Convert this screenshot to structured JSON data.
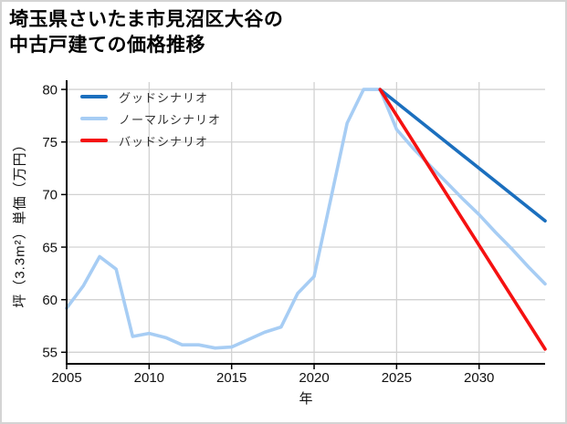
{
  "header": {
    "title_line1": "埼玉県さいたま市見沼区大谷の",
    "title_line2": "中古戸建ての価格推移"
  },
  "chart_data": {
    "type": "line",
    "title": "埼玉県さいたま市見沼区大谷の中古戸建ての価格推移",
    "xlabel": "年",
    "ylabel": "坪（3.3m²）単価（万円）",
    "xlim": [
      2005,
      2034
    ],
    "ylim": [
      53.9,
      80.7
    ],
    "x_ticks": [
      2005,
      2010,
      2015,
      2020,
      2025,
      2030
    ],
    "y_ticks": [
      55,
      60,
      65,
      70,
      75,
      80
    ],
    "grid": true,
    "grid_color": "#d2d2d2",
    "axis_color": "#000000",
    "legend_position": "upper-left",
    "series": [
      {
        "name": "グッドシナリオ",
        "color": "#1b6fbe",
        "x": [
          2024,
          2034
        ],
        "values": [
          80,
          67.5
        ]
      },
      {
        "name": "ノーマルシナリオ",
        "color": "#a7cdf4",
        "x": [
          2005,
          2006,
          2007,
          2008,
          2009,
          2010,
          2011,
          2012,
          2013,
          2014,
          2015,
          2016,
          2017,
          2018,
          2019,
          2020,
          2021,
          2022,
          2023,
          2024,
          2025,
          2026,
          2027,
          2028,
          2029,
          2030,
          2031,
          2032,
          2033,
          2034
        ],
        "values": [
          59.2,
          61.3,
          64.1,
          62.9,
          56.5,
          56.8,
          56.4,
          55.7,
          55.7,
          55.4,
          55.5,
          56.2,
          56.9,
          57.4,
          60.6,
          62.2,
          69.5,
          76.8,
          80,
          80,
          76.2,
          74.4,
          72.8,
          71.2,
          69.6,
          68.1,
          66.4,
          64.8,
          63.1,
          61.5
        ]
      },
      {
        "name": "バッドシナリオ",
        "color": "#f51111",
        "x": [
          2024,
          2034
        ],
        "values": [
          80,
          55.3
        ]
      }
    ]
  }
}
